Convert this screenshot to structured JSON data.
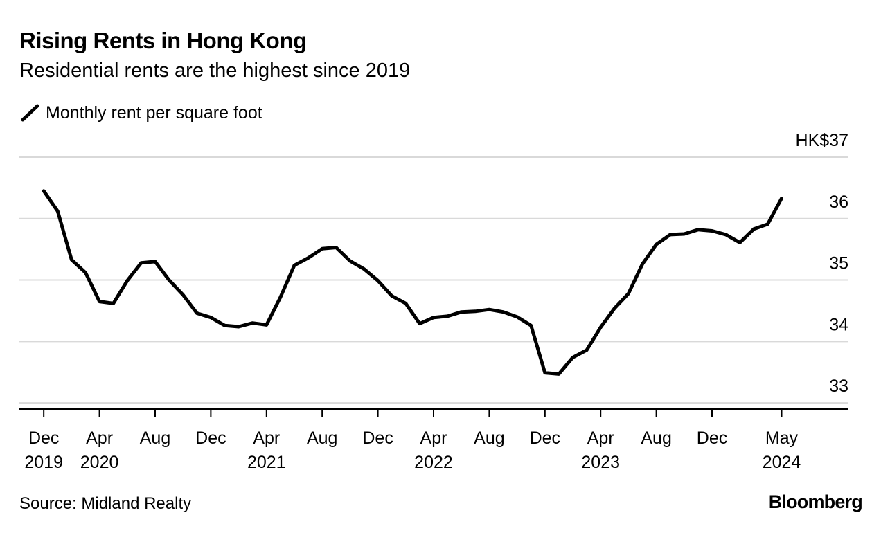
{
  "header": {
    "title": "Rising Rents in Hong Kong",
    "subtitle": "Residential rents are the highest since 2019"
  },
  "legend": {
    "label": "Monthly rent per square foot"
  },
  "footer": {
    "source": "Source: Midland Realty",
    "logo_text": "Bloomberg"
  },
  "colors": {
    "line": "#000000",
    "grid": "#d9d9d9",
    "axis": "#000000",
    "background": "#ffffff"
  },
  "chart_data": {
    "type": "line",
    "title": "Rising Rents in Hong Kong",
    "subtitle": "Residential rents are the highest since 2019",
    "xlabel": "",
    "ylabel": "Monthly rent per square foot (HK$)",
    "ylim": [
      32.9,
      37
    ],
    "grid": true,
    "legend_position": "top-left",
    "y_ticks": [
      {
        "value": 33,
        "label": "33"
      },
      {
        "value": 34,
        "label": "34"
      },
      {
        "value": 35,
        "label": "35"
      },
      {
        "value": 36,
        "label": "36"
      },
      {
        "value": 37,
        "label": "HK$37"
      }
    ],
    "x_ticks": [
      {
        "index": 0,
        "month": "Dec",
        "year": "2019"
      },
      {
        "index": 4,
        "month": "Apr",
        "year": "2020"
      },
      {
        "index": 8,
        "month": "Aug",
        "year": ""
      },
      {
        "index": 12,
        "month": "Dec",
        "year": ""
      },
      {
        "index": 16,
        "month": "Apr",
        "year": "2021"
      },
      {
        "index": 20,
        "month": "Aug",
        "year": ""
      },
      {
        "index": 24,
        "month": "Dec",
        "year": ""
      },
      {
        "index": 28,
        "month": "Apr",
        "year": "2022"
      },
      {
        "index": 32,
        "month": "Aug",
        "year": ""
      },
      {
        "index": 36,
        "month": "Dec",
        "year": ""
      },
      {
        "index": 40,
        "month": "Apr",
        "year": "2023"
      },
      {
        "index": 44,
        "month": "Aug",
        "year": ""
      },
      {
        "index": 48,
        "month": "Dec",
        "year": ""
      },
      {
        "index": 53,
        "month": "May",
        "year": "2024"
      }
    ],
    "x_range": [
      -1.75,
      57.8
    ],
    "series": [
      {
        "name": "Monthly rent per square foot",
        "start": "Dec 2019",
        "frequency": "monthly",
        "values": [
          36.45,
          36.12,
          35.33,
          35.12,
          34.65,
          34.62,
          34.99,
          35.28,
          35.3,
          35.0,
          34.76,
          34.46,
          34.39,
          34.26,
          34.24,
          34.3,
          34.27,
          34.72,
          35.24,
          35.36,
          35.51,
          35.53,
          35.31,
          35.18,
          34.99,
          34.74,
          34.62,
          34.29,
          34.39,
          34.41,
          34.48,
          34.49,
          34.52,
          34.48,
          34.4,
          34.26,
          33.49,
          33.47,
          33.74,
          33.86,
          34.23,
          34.54,
          34.78,
          35.26,
          35.58,
          35.74,
          35.75,
          35.82,
          35.8,
          35.74,
          35.61,
          35.83,
          35.91,
          36.33
        ]
      }
    ]
  }
}
